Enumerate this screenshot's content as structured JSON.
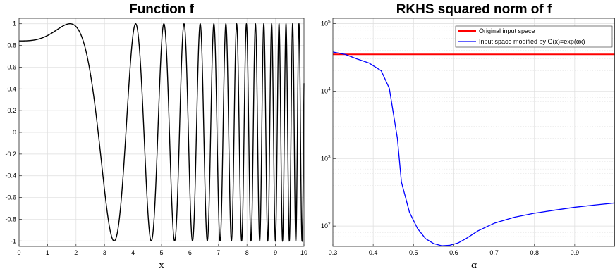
{
  "chart_data": [
    {
      "type": "line",
      "title": "Function f",
      "xlabel": "x",
      "ylabel": "",
      "xlim": [
        0,
        10
      ],
      "ylim": [
        -1.05,
        1.05
      ],
      "xticks": [
        "0",
        "1",
        "2",
        "3",
        "4",
        "5",
        "6",
        "7",
        "8",
        "9",
        "10"
      ],
      "yticks": [
        "-1",
        "-0.8",
        "-0.6",
        "-0.4",
        "-0.2",
        "0",
        "0.2",
        "0.4",
        "0.6",
        "0.8",
        "1"
      ],
      "grid": true,
      "series": [
        {
          "function": "sin(0.1*x^3 + 1)",
          "color": "#000000"
        }
      ]
    },
    {
      "type": "line",
      "title": "RKHS squared norm of f",
      "xlabel": "α",
      "ylabel": "",
      "xlim": [
        0.3,
        1.0
      ],
      "ylim": [
        50,
        120000
      ],
      "yscale": "log",
      "xticks": [
        "0.3",
        "0.4",
        "0.5",
        "0.6",
        "0.7",
        "0.8",
        "0.9"
      ],
      "yticks": [
        {
          "base": "10",
          "exp": "2"
        },
        {
          "base": "10",
          "exp": "3"
        },
        {
          "base": "10",
          "exp": "4"
        },
        {
          "base": "10",
          "exp": "5"
        }
      ],
      "grid": true,
      "legend": "top-right",
      "series": [
        {
          "name": "Original input space",
          "color": "#ff0000",
          "x": [
            0.3,
            1.0
          ],
          "y": [
            35000,
            35000
          ]
        },
        {
          "name": "Input space modified by G(x)=exp(αx)",
          "color": "#0000ff",
          "x": [
            0.3,
            0.33,
            0.36,
            0.39,
            0.42,
            0.44,
            0.46,
            0.47,
            0.49,
            0.51,
            0.53,
            0.55,
            0.57,
            0.59,
            0.61,
            0.63,
            0.66,
            0.7,
            0.75,
            0.8,
            0.85,
            0.9,
            0.95,
            1.0
          ],
          "y": [
            38000,
            35000,
            30000,
            26000,
            20000,
            11000,
            2000,
            450,
            160,
            92,
            65,
            55,
            51,
            52,
            56,
            65,
            85,
            110,
            135,
            155,
            172,
            190,
            205,
            220
          ]
        }
      ]
    }
  ],
  "colors": {
    "axis": "#262626",
    "grid": "#dedede",
    "plot_bg": "#ffffff"
  }
}
